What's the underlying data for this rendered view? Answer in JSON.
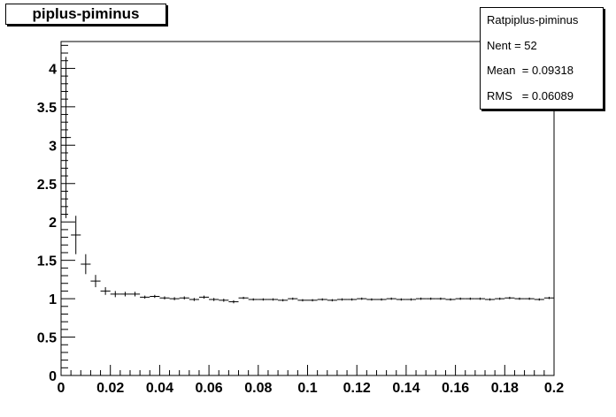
{
  "chart_data": {
    "type": "histogram",
    "title": "piplus-piminus",
    "xlabel": "",
    "ylabel": "",
    "xlim": [
      0,
      0.2
    ],
    "ylim": [
      0,
      4.35
    ],
    "grid": false,
    "xticks": [
      "0",
      "0.02",
      "0.04",
      "0.06",
      "0.08",
      "0.1",
      "0.12",
      "0.14",
      "0.16",
      "0.18",
      "0.2"
    ],
    "yticks": [
      "0",
      "0.5",
      "1",
      "1.5",
      "2",
      "2.5",
      "3",
      "3.5",
      "4"
    ],
    "bin_width": 0.004,
    "series": [
      {
        "x": [
          0.002,
          0.006,
          0.01,
          0.014,
          0.018,
          0.022,
          0.026,
          0.03,
          0.034,
          0.038,
          0.042,
          0.046,
          0.05,
          0.054,
          0.058,
          0.062,
          0.066,
          0.07,
          0.074,
          0.078,
          0.082,
          0.086,
          0.09,
          0.094,
          0.098,
          0.102,
          0.106,
          0.11,
          0.114,
          0.118,
          0.122,
          0.126,
          0.13,
          0.134,
          0.138,
          0.142,
          0.146,
          0.15,
          0.154,
          0.158,
          0.162,
          0.166,
          0.17,
          0.174,
          0.178,
          0.182,
          0.186,
          0.19,
          0.194,
          0.198
        ],
        "y": [
          3.1,
          1.83,
          1.45,
          1.23,
          1.1,
          1.06,
          1.06,
          1.06,
          1.02,
          1.03,
          1.01,
          1.0,
          1.01,
          0.99,
          1.02,
          0.99,
          0.98,
          0.96,
          1.01,
          0.99,
          0.99,
          0.99,
          0.98,
          1.0,
          0.98,
          0.98,
          0.99,
          0.98,
          0.99,
          0.99,
          1.0,
          0.99,
          0.99,
          1.0,
          0.99,
          0.99,
          1.0,
          1.0,
          1.0,
          0.99,
          1.0,
          1.0,
          1.0,
          0.99,
          1.0,
          1.01,
          1.0,
          1.0,
          0.99,
          1.01
        ],
        "yerr": [
          1.05,
          0.25,
          0.13,
          0.08,
          0.05,
          0.04,
          0.03,
          0.03,
          0.02,
          0.02,
          0.02,
          0.02,
          0.02,
          0.02,
          0.02,
          0.02,
          0.02,
          0.02,
          0.015,
          0.015,
          0.015,
          0.015,
          0.015,
          0.015,
          0.015,
          0.015,
          0.015,
          0.015,
          0.015,
          0.015,
          0.015,
          0.015,
          0.015,
          0.015,
          0.015,
          0.015,
          0.015,
          0.015,
          0.015,
          0.015,
          0.015,
          0.015,
          0.015,
          0.015,
          0.015,
          0.015,
          0.015,
          0.015,
          0.015,
          0.015
        ]
      }
    ],
    "stats": {
      "name": "Ratpiplus-piminus",
      "nent_label": "Nent = 52",
      "mean_label": "Mean  = 0.09318",
      "rms_label": "RMS   = 0.06089"
    }
  }
}
